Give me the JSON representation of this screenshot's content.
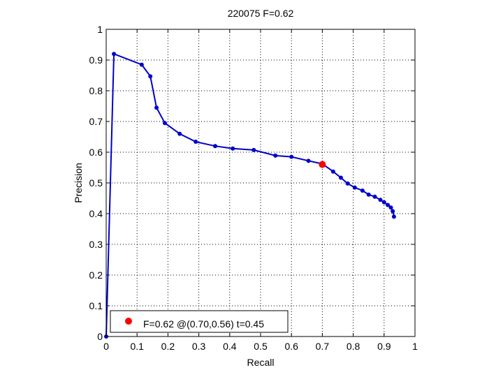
{
  "chart_data": {
    "type": "line",
    "title": "220075 F=0.62",
    "xlabel": "Recall",
    "ylabel": "Precision",
    "xlim": [
      0,
      1
    ],
    "ylim": [
      0,
      1
    ],
    "xticks": [
      "0",
      "0.1",
      "0.2",
      "0.3",
      "0.4",
      "0.5",
      "0.6",
      "0.7",
      "0.8",
      "0.9",
      "1"
    ],
    "yticks": [
      "0",
      "0.1",
      "0.2",
      "0.3",
      "0.4",
      "0.5",
      "0.6",
      "0.7",
      "0.8",
      "0.9",
      "1"
    ],
    "grid": true,
    "legend_position": "bottom-left",
    "series": [
      {
        "color": "#0000cc",
        "marker": "dot",
        "points": [
          [
            0.0,
            0.0
          ],
          [
            0.025,
            0.92
          ],
          [
            0.115,
            0.885
          ],
          [
            0.143,
            0.847
          ],
          [
            0.163,
            0.745
          ],
          [
            0.19,
            0.695
          ],
          [
            0.238,
            0.66
          ],
          [
            0.29,
            0.634
          ],
          [
            0.353,
            0.62
          ],
          [
            0.41,
            0.612
          ],
          [
            0.478,
            0.607
          ],
          [
            0.548,
            0.589
          ],
          [
            0.6,
            0.585
          ],
          [
            0.655,
            0.572
          ],
          [
            0.7,
            0.562
          ],
          [
            0.735,
            0.537
          ],
          [
            0.76,
            0.517
          ],
          [
            0.782,
            0.498
          ],
          [
            0.805,
            0.485
          ],
          [
            0.83,
            0.475
          ],
          [
            0.85,
            0.462
          ],
          [
            0.87,
            0.455
          ],
          [
            0.888,
            0.445
          ],
          [
            0.9,
            0.437
          ],
          [
            0.912,
            0.428
          ],
          [
            0.922,
            0.42
          ],
          [
            0.928,
            0.408
          ],
          [
            0.932,
            0.39
          ]
        ]
      }
    ],
    "highlight": {
      "x": 0.7,
      "y": 0.56,
      "color": "#ff0000",
      "label": "F=0.62 @(0.70,0.56) t=0.45"
    }
  }
}
